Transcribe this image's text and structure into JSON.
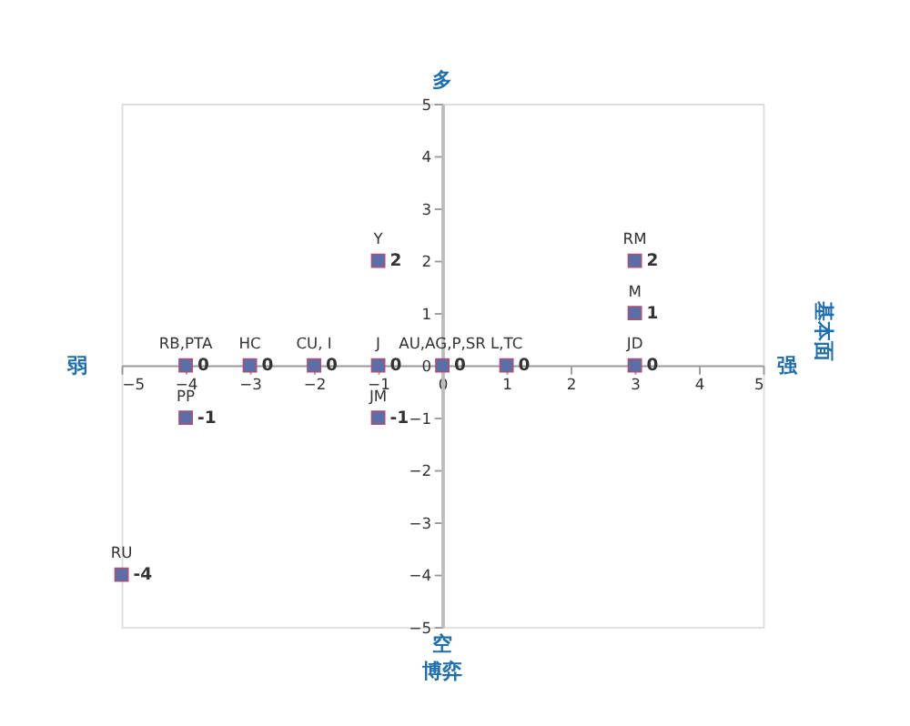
{
  "chart_data": {
    "type": "scatter",
    "x": [
      -4,
      -3,
      -2,
      -1,
      0,
      1,
      3,
      3,
      3,
      -1,
      -1,
      -4,
      -5
    ],
    "series": [
      {
        "color": "#5b6ea8",
        "values": [
          0,
          0,
          0,
          0,
          0,
          0,
          0,
          1,
          2,
          2,
          -1,
          -1,
          -4
        ]
      }
    ],
    "annotations": [
      {
        "text": "RB,PTA",
        "x": -4,
        "y": 0
      },
      {
        "text": "HC",
        "x": -3,
        "y": 0
      },
      {
        "text": "CU, I",
        "x": -2,
        "y": 0
      },
      {
        "text": "J",
        "x": -1,
        "y": 0
      },
      {
        "text": "AU,AG,P,SR",
        "x": 0,
        "y": 0
      },
      {
        "text": "L,TC",
        "x": 1,
        "y": 0
      },
      {
        "text": "JD",
        "x": 3,
        "y": 0
      },
      {
        "text": "M",
        "x": 3,
        "y": 1
      },
      {
        "text": "RM",
        "x": 3,
        "y": 2
      },
      {
        "text": "Y",
        "x": -1,
        "y": 2
      },
      {
        "text": "JM",
        "x": -1,
        "y": -1
      },
      {
        "text": "PP",
        "x": -4,
        "y": -1
      },
      {
        "text": "RU",
        "x": -5,
        "y": -4
      },
      "多",
      "空",
      "弱",
      "强",
      "基本面",
      "博弈"
    ],
    "xlim": [
      -5,
      5
    ],
    "xticks": [
      -5,
      -4,
      -3,
      -2,
      -1,
      0,
      1,
      2,
      3,
      4,
      5
    ],
    "ylim": [
      -5,
      5
    ],
    "yticks": [
      -5,
      -4,
      -3,
      -2,
      -1,
      0,
      1,
      2,
      3,
      4,
      5
    ],
    "data_labels": true,
    "marker": "square",
    "grid": false
  }
}
